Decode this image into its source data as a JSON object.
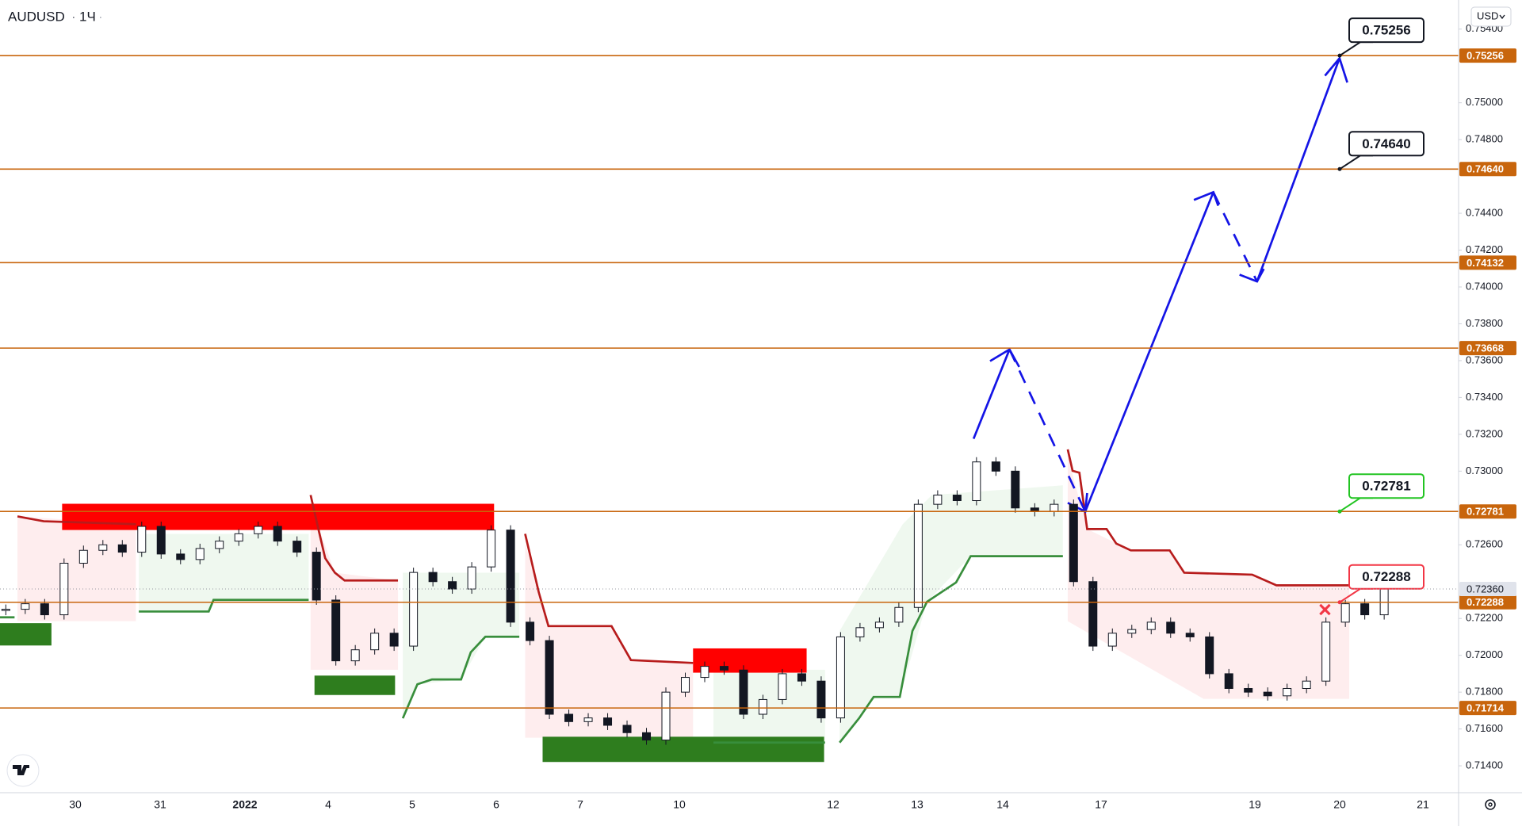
{
  "header": {
    "symbol": "AUDUSD",
    "interval": "1Ч",
    "currency": "USD"
  },
  "price_axis": {
    "ylim": [
      0.71254,
      0.75558
    ],
    "yticks": [
      {
        "value": 0.754,
        "label": "0.75400"
      },
      {
        "value": 0.75,
        "label": "0.75000"
      },
      {
        "value": 0.748,
        "label": "0.74800"
      },
      {
        "value": 0.744,
        "label": "0.74400"
      },
      {
        "value": 0.742,
        "label": "0.74200"
      },
      {
        "value": 0.74,
        "label": "0.74000"
      },
      {
        "value": 0.738,
        "label": "0.73800"
      },
      {
        "value": 0.736,
        "label": "0.73600"
      },
      {
        "value": 0.734,
        "label": "0.73400"
      },
      {
        "value": 0.732,
        "label": "0.73200"
      },
      {
        "value": 0.73,
        "label": "0.73000"
      },
      {
        "value": 0.726,
        "label": "0.72600"
      },
      {
        "value": 0.722,
        "label": "0.72200"
      },
      {
        "value": 0.72,
        "label": "0.72000"
      },
      {
        "value": 0.718,
        "label": "0.71800"
      },
      {
        "value": 0.716,
        "label": "0.71600"
      },
      {
        "value": 0.714,
        "label": "0.71400"
      }
    ]
  },
  "time_axis": {
    "labels": [
      "30",
      "31",
      "2022",
      "4",
      "5",
      "6",
      "7",
      "10",
      "12",
      "13",
      "14",
      "17",
      "19",
      "20",
      "21"
    ]
  },
  "levels": [
    {
      "value": 0.75256,
      "label": "0.75256",
      "callout": "#131722"
    },
    {
      "value": 0.7464,
      "label": "0.74640",
      "callout": "#131722"
    },
    {
      "value": 0.74132,
      "label": "0.74132"
    },
    {
      "value": 0.73668,
      "label": "0.73668"
    },
    {
      "value": 0.72781,
      "label": "0.72781",
      "callout": "#22c422"
    },
    {
      "value": 0.72288,
      "label": "0.72288",
      "callout": "#f23645"
    },
    {
      "value": 0.71714,
      "label": "0.71714"
    }
  ],
  "level_color": "#c8650c",
  "current_price": {
    "value": 0.7236,
    "label": "0.72360"
  },
  "price": {
    "closes": [
      0.7225,
      0.7228,
      0.7222,
      0.725,
      0.7257,
      0.726,
      0.7256,
      0.727,
      0.7255,
      0.7252,
      0.7258,
      0.7262,
      0.7266,
      0.727,
      0.7262,
      0.7256,
      0.723,
      0.7197,
      0.7203,
      0.7212,
      0.7205,
      0.7245,
      0.724,
      0.7236,
      0.7248,
      0.7268,
      0.7218,
      0.7208,
      0.7168,
      0.7164,
      0.7166,
      0.7162,
      0.7158,
      0.7154,
      0.718,
      0.7188,
      0.7194,
      0.7192,
      0.7168,
      0.7176,
      0.719,
      0.7186,
      0.7166,
      0.721,
      0.7215,
      0.7218,
      0.7226,
      0.7282,
      0.7287,
      0.7284,
      0.7305,
      0.73,
      0.728,
      0.7278,
      0.7282,
      0.724,
      0.7205,
      0.7212,
      0.7214,
      0.7218,
      0.7212,
      0.721,
      0.719,
      0.7182,
      0.718,
      0.7178,
      0.7182,
      0.7186,
      0.7218,
      0.7228,
      0.7222,
      0.7236
    ]
  }
}
